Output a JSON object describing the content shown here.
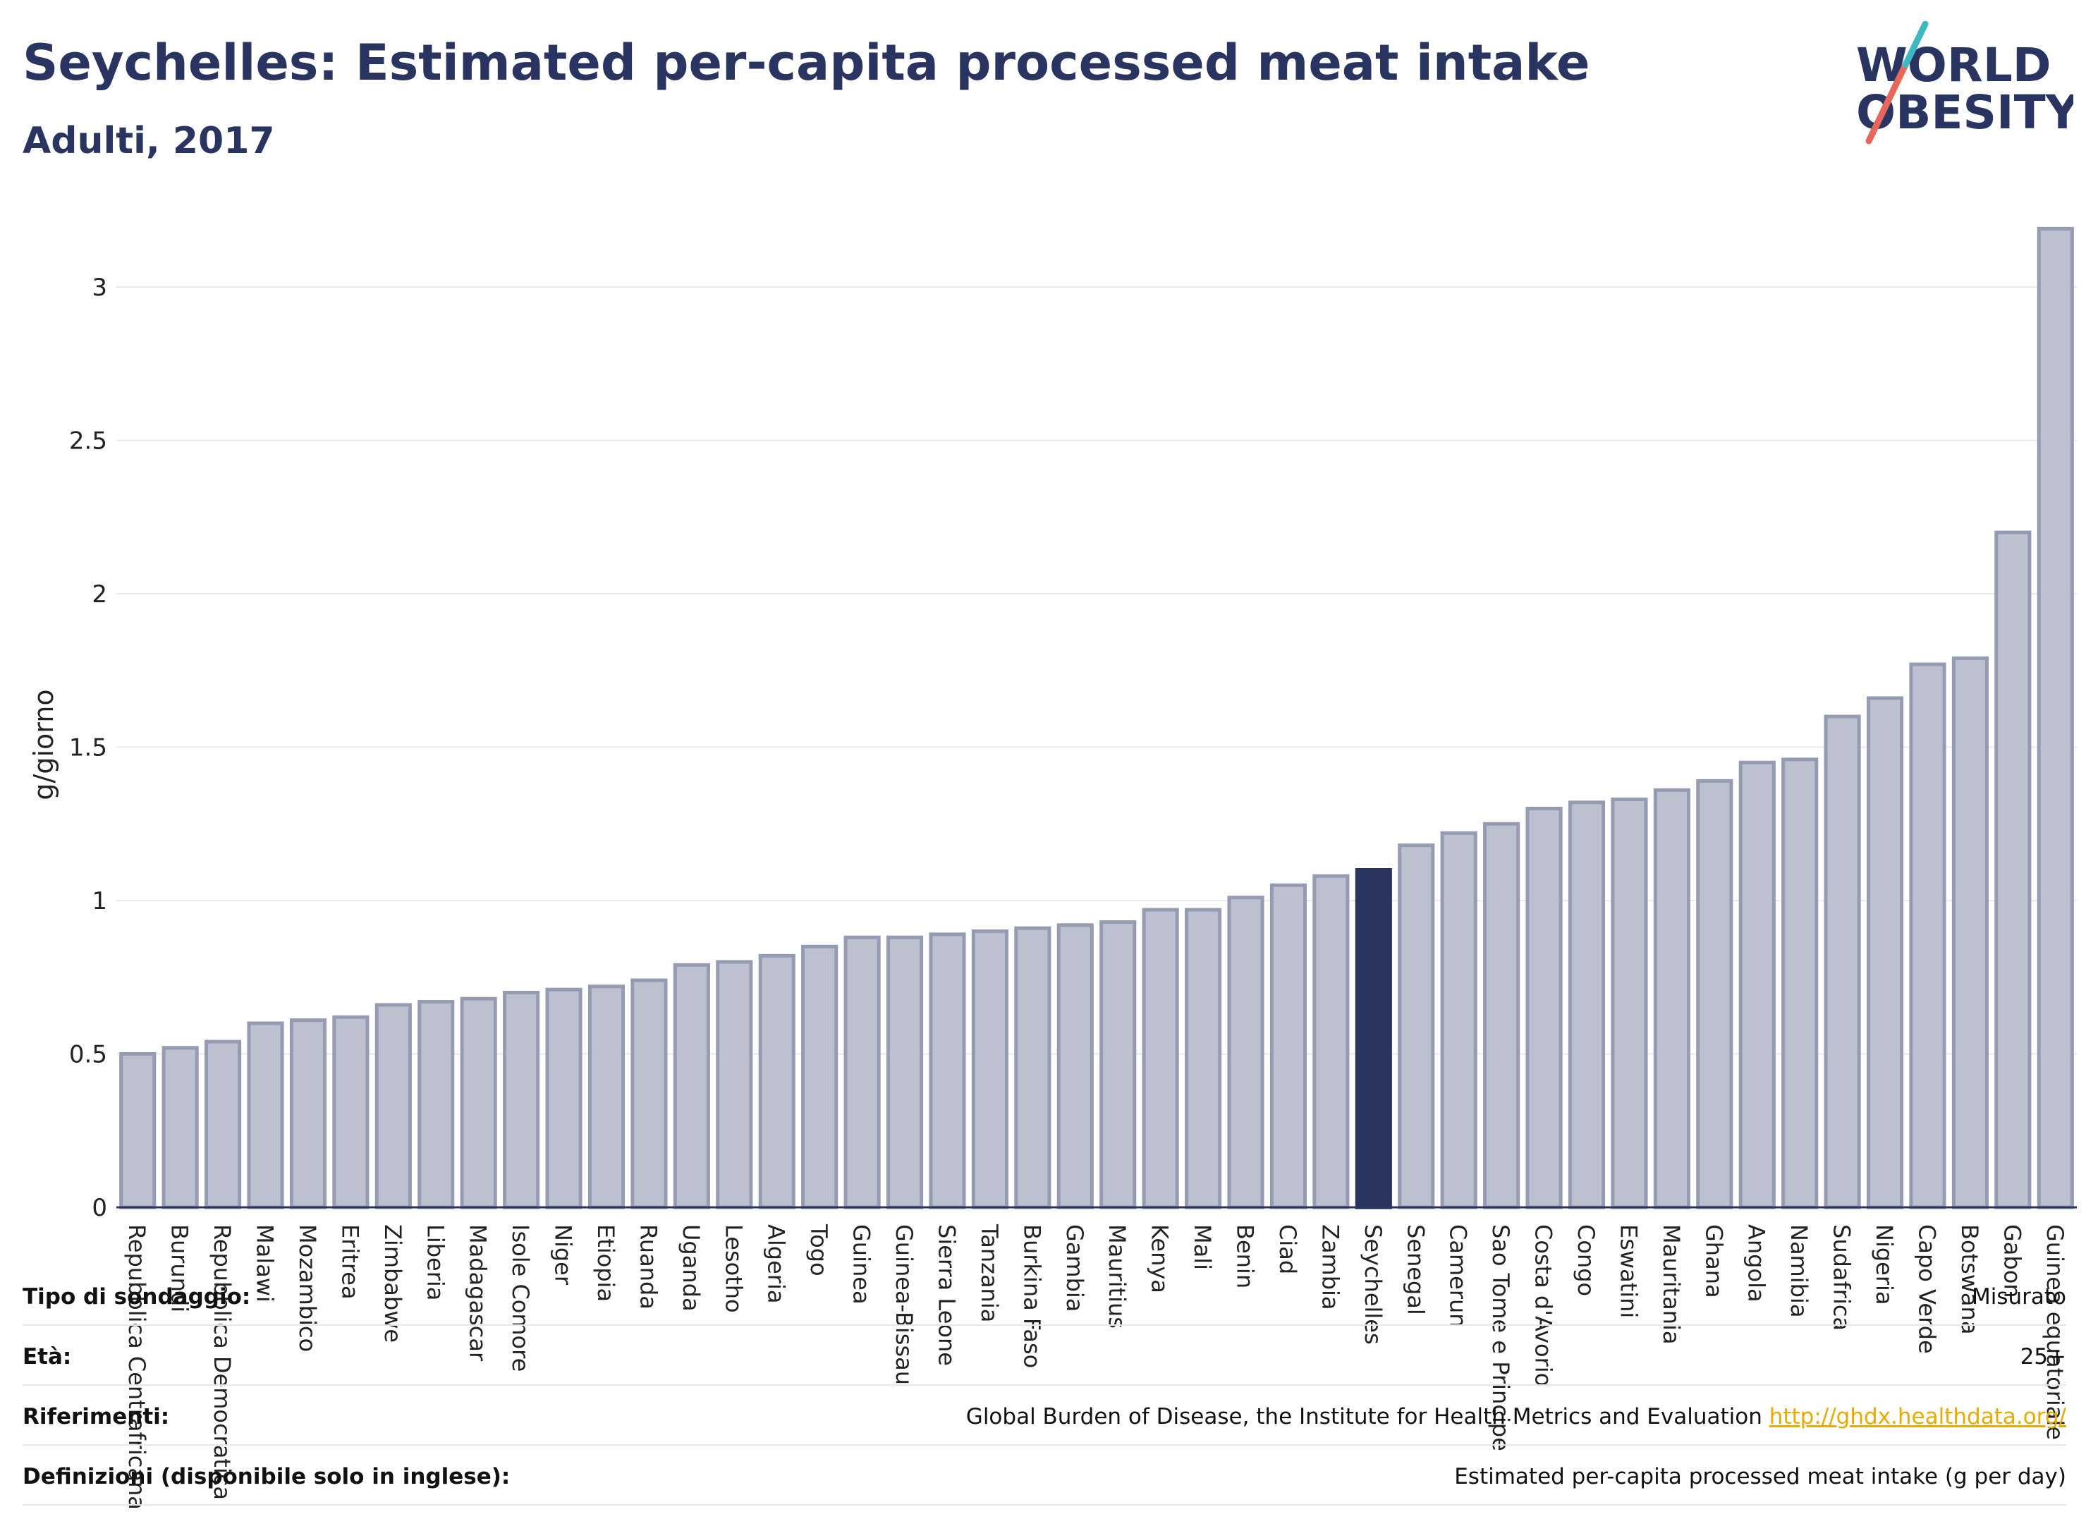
{
  "header": {
    "title": "Seychelles: Estimated per-capita processed meat intake",
    "subtitle": "Adulti, 2017"
  },
  "logo": {
    "line1": "WORLD",
    "line2": "OBESITY",
    "slash_colors": [
      "#e8675b",
      "#3fb8c4"
    ]
  },
  "colors": {
    "bar": "#bcc0cf",
    "bar_border": "#959bb3",
    "highlight": "#2a3460",
    "grid": "#e8eaef"
  },
  "chart_data": {
    "type": "bar",
    "ylabel": "g/giorno",
    "ylim": [
      0,
      3.2
    ],
    "yticks": [
      0,
      0.5,
      1,
      1.5,
      2,
      2.5,
      3
    ],
    "ytick_labels": [
      "0",
      "0.5",
      "1",
      "1.5",
      "2",
      "2.5",
      "3"
    ],
    "highlight": "Seychelles",
    "categories": [
      "Repubblica Centrafricana",
      "Burundi",
      "Repubblica Democratica",
      "Malawi",
      "Mozambico",
      "Eritrea",
      "Zimbabwe",
      "Liberia",
      "Madagascar",
      "Isole Comore",
      "Niger",
      "Etiopia",
      "Ruanda",
      "Uganda",
      "Lesotho",
      "Algeria",
      "Togo",
      "Guinea",
      "Guinea-Bissau",
      "Sierra Leone",
      "Tanzania",
      "Burkina Faso",
      "Gambia",
      "Mauritius",
      "Kenya",
      "Mali",
      "Benin",
      "Ciad",
      "Zambia",
      "Seychelles",
      "Senegal",
      "Camerun",
      "Sao Tome e Principe",
      "Costa d'Avorio",
      "Congo",
      "Eswatini",
      "Mauritania",
      "Ghana",
      "Angola",
      "Namibia",
      "Sudafrica",
      "Nigeria",
      "Capo Verde",
      "Botswana",
      "Gabon",
      "Guinea equatoriale"
    ],
    "values": [
      0.5,
      0.52,
      0.54,
      0.6,
      0.61,
      0.62,
      0.66,
      0.67,
      0.68,
      0.7,
      0.71,
      0.72,
      0.74,
      0.79,
      0.8,
      0.82,
      0.85,
      0.88,
      0.88,
      0.89,
      0.9,
      0.91,
      0.92,
      0.93,
      0.97,
      0.97,
      1.01,
      1.05,
      1.08,
      1.1,
      1.18,
      1.22,
      1.25,
      1.3,
      1.32,
      1.33,
      1.36,
      1.39,
      1.45,
      1.46,
      1.6,
      1.66,
      1.77,
      1.79,
      2.2,
      3.19
    ]
  },
  "info": [
    {
      "label": "Tipo di sondaggio:",
      "value": "Misurato"
    },
    {
      "label": "Età:",
      "value": "25+"
    },
    {
      "label": "Riferimenti:",
      "value": "Global Burden of Disease, the Institute for Health Metrics and Evaluation",
      "link": "http://ghdx.healthdata.org/"
    },
    {
      "label": "Definizioni (disponibile solo in inglese):",
      "value": "Estimated per-capita processed meat intake (g per day)"
    }
  ]
}
